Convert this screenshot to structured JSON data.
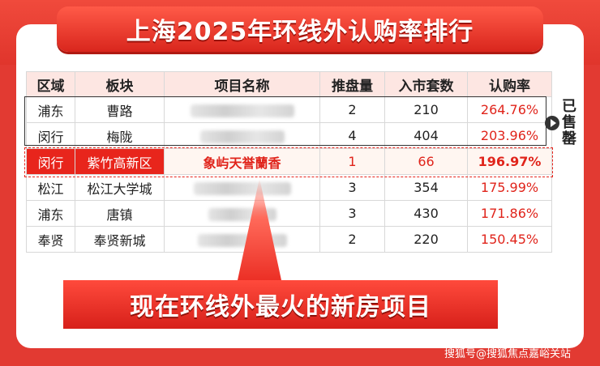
{
  "title": "上海2025年环线外认购率排行",
  "table": {
    "headers": [
      "区域",
      "板块",
      "项目名称",
      "推盘量",
      "入市套数",
      "认购率"
    ],
    "rows": [
      {
        "district": "浦东",
        "area": "曹路",
        "project": "",
        "launch": "2",
        "units": "210",
        "rate": "264.76%"
      },
      {
        "district": "闵行",
        "area": "梅陇",
        "project": "",
        "launch": "4",
        "units": "404",
        "rate": "203.96%"
      },
      {
        "district": "闵行",
        "area": "紫竹高新区",
        "project": "象屿天誉蘭香",
        "launch": "1",
        "units": "66",
        "rate": "196.97%"
      },
      {
        "district": "松江",
        "area": "松江大学城",
        "project": "",
        "launch": "3",
        "units": "354",
        "rate": "175.99%"
      },
      {
        "district": "浦东",
        "area": "唐镇",
        "project": "",
        "launch": "3",
        "units": "430",
        "rate": "171.86%"
      },
      {
        "district": "奉贤",
        "area": "奉贤新城",
        "project": "",
        "launch": "2",
        "units": "220",
        "rate": "150.45%"
      }
    ]
  },
  "sold_label": "已售罄",
  "cta": "现在环线外最火的新房项目",
  "watermark": "搜狐号@搜狐焦点嘉峪关站",
  "colors": {
    "accent": "#e8251c",
    "header_bg": "#fde6e2"
  }
}
